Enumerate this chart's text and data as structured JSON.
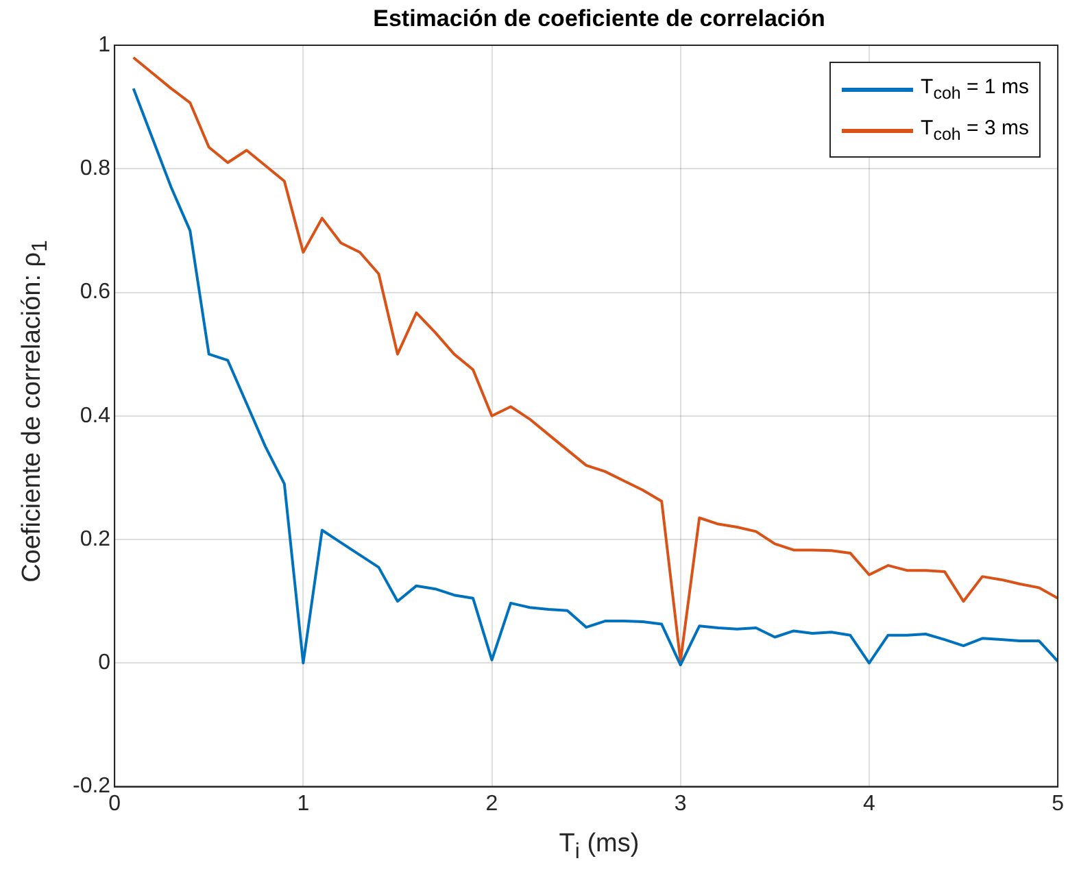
{
  "chart_data": {
    "type": "line",
    "title": "Estimación de coeficiente de correlación",
    "xlabel": "T$_{i}$ (ms)",
    "ylabel": "Coeficiente de correlación: ρ$_{1}$",
    "x": [
      0.1,
      0.2,
      0.3,
      0.4,
      0.5,
      0.6,
      0.7,
      0.8,
      0.9,
      1.0,
      1.1,
      1.2,
      1.3,
      1.4,
      1.5,
      1.6,
      1.7,
      1.8,
      1.9,
      2.0,
      2.1,
      2.2,
      2.3,
      2.4,
      2.5,
      2.6,
      2.7,
      2.8,
      2.9,
      3.0,
      3.1,
      3.2,
      3.3,
      3.4,
      3.5,
      3.6,
      3.7,
      3.8,
      3.9,
      4.0,
      4.1,
      4.2,
      4.3,
      4.4,
      4.5,
      4.6,
      4.7,
      4.8,
      4.9,
      5.0
    ],
    "series": [
      {
        "name": "T$_{coh}$ = 1 ms",
        "color": "#0072bd",
        "values": [
          0.93,
          0.85,
          0.77,
          0.7,
          0.5,
          0.49,
          0.42,
          0.35,
          0.29,
          0.0,
          0.215,
          0.195,
          0.175,
          0.155,
          0.1,
          0.125,
          0.12,
          0.11,
          0.105,
          0.005,
          0.097,
          0.09,
          0.087,
          0.085,
          0.058,
          0.068,
          0.068,
          0.067,
          0.063,
          -0.003,
          0.06,
          0.057,
          0.055,
          0.057,
          0.042,
          0.052,
          0.048,
          0.05,
          0.045,
          0.0,
          0.045,
          0.045,
          0.047,
          0.038,
          0.028,
          0.04,
          0.038,
          0.036,
          0.036,
          0.003
        ]
      },
      {
        "name": "T$_{coh}$ = 3 ms",
        "color": "#d95319",
        "values": [
          0.98,
          0.955,
          0.93,
          0.907,
          0.835,
          0.81,
          0.83,
          0.805,
          0.78,
          0.665,
          0.72,
          0.68,
          0.665,
          0.63,
          0.5,
          0.567,
          0.535,
          0.5,
          0.475,
          0.4,
          0.415,
          0.395,
          0.37,
          0.345,
          0.32,
          0.31,
          0.295,
          0.28,
          0.262,
          0.003,
          0.235,
          0.225,
          0.22,
          0.213,
          0.193,
          0.183,
          0.183,
          0.182,
          0.178,
          0.143,
          0.158,
          0.15,
          0.15,
          0.148,
          0.1,
          0.14,
          0.135,
          0.128,
          0.122,
          0.105
        ]
      }
    ],
    "xlim": [
      0,
      5
    ],
    "xticks": [
      0,
      1,
      2,
      3,
      4,
      5
    ],
    "ylim": [
      -0.2,
      1
    ],
    "yticks": [
      -0.2,
      0,
      0.2,
      0.4,
      0.6,
      0.8,
      1
    ],
    "grid": true,
    "legend": "top right",
    "marker": "none",
    "line_style": "solid"
  }
}
